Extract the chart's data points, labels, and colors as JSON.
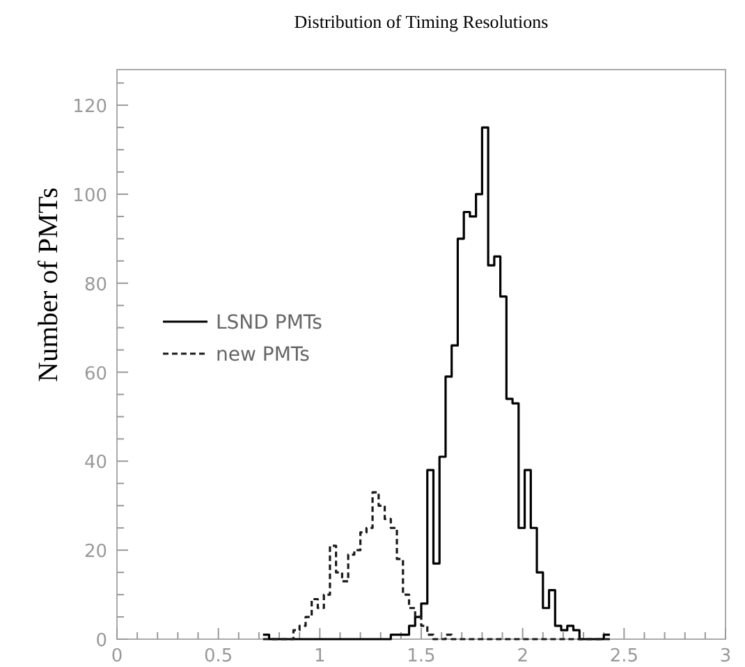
{
  "chart_data": {
    "type": "histogram",
    "title": "Distribution of Timing Resolutions",
    "ylabel": "Number of PMTs",
    "bins": [
      0.72,
      0.75,
      0.78,
      0.81,
      0.84,
      0.87,
      0.9,
      0.93,
      0.96,
      0.99,
      1.02,
      1.05,
      1.08,
      1.11,
      1.14,
      1.17,
      1.2,
      1.23,
      1.26,
      1.29,
      1.32,
      1.35,
      1.38,
      1.41,
      1.44,
      1.47,
      1.5,
      1.53,
      1.56,
      1.59,
      1.62,
      1.65,
      1.68,
      1.71,
      1.74,
      1.77,
      1.8,
      1.83,
      1.86,
      1.89,
      1.92,
      1.95,
      1.98,
      2.01,
      2.04,
      2.07,
      2.1,
      2.13,
      2.16,
      2.19,
      2.22,
      2.25,
      2.28,
      2.31,
      2.34,
      2.37,
      2.4,
      2.43
    ],
    "series": [
      {
        "name": "LSND PMTs",
        "color": "#000000",
        "line_style": "solid",
        "values": [
          1,
          0,
          0,
          0,
          0,
          0,
          0,
          0,
          0,
          0,
          0,
          0,
          0,
          0,
          0,
          0,
          0,
          0,
          0,
          0,
          0,
          1,
          1,
          1,
          3,
          5,
          8,
          38,
          17,
          41,
          59,
          66,
          90,
          96,
          95,
          100,
          115,
          84,
          86,
          77,
          54,
          53,
          25,
          38,
          25,
          15,
          7,
          11,
          3,
          2,
          3,
          2,
          0,
          0,
          0,
          0,
          1
        ]
      },
      {
        "name": "new PMTs",
        "color": "#1a1a1a",
        "line_style": "dashed",
        "values": [
          0,
          0,
          0,
          0,
          0,
          2,
          3,
          5,
          9,
          7,
          10,
          21,
          15,
          13,
          19,
          20,
          24,
          25,
          33,
          30,
          27,
          25,
          18,
          10,
          7,
          5,
          3,
          1,
          0,
          0,
          1,
          0,
          0,
          0,
          0,
          0,
          0,
          0,
          0,
          0,
          0,
          0,
          0,
          0,
          0,
          0,
          0,
          0,
          0,
          0,
          0,
          0,
          0,
          0,
          0,
          0,
          0
        ]
      }
    ],
    "xlim": [
      0,
      3
    ],
    "ylim": [
      0,
      128
    ],
    "xticks": [
      0,
      {
        "value": 0.1,
        "label": null
      },
      {
        "value": 0.2,
        "label": null
      },
      {
        "value": 0.3,
        "label": null
      },
      {
        "value": 0.4,
        "label": null
      },
      0.5,
      {
        "value": 0.6,
        "label": null
      },
      {
        "value": 0.7,
        "label": null
      },
      {
        "value": 0.8,
        "label": null
      },
      {
        "value": 0.9,
        "label": null
      },
      1,
      {
        "value": 1.1,
        "label": null
      },
      {
        "value": 1.2,
        "label": null
      },
      {
        "value": 1.3,
        "label": null
      },
      {
        "value": 1.4,
        "label": null
      },
      1.5,
      {
        "value": 1.6,
        "label": null
      },
      {
        "value": 1.7,
        "label": null
      },
      {
        "value": 1.8,
        "label": null
      },
      {
        "value": 1.9,
        "label": null
      },
      2,
      {
        "value": 2.1,
        "label": null
      },
      {
        "value": 2.2,
        "label": null
      },
      {
        "value": 2.3,
        "label": null
      },
      {
        "value": 2.4,
        "label": null
      },
      2.5,
      {
        "value": 2.6,
        "label": null
      },
      {
        "value": 2.7,
        "label": null
      },
      {
        "value": 2.8,
        "label": null
      },
      {
        "value": 2.9,
        "label": null
      },
      3
    ],
    "yticks": [
      0,
      {
        "value": 5,
        "label": null
      },
      {
        "value": 10,
        "label": null
      },
      {
        "value": 15,
        "label": null
      },
      20,
      {
        "value": 25,
        "label": null
      },
      {
        "value": 30,
        "label": null
      },
      {
        "value": 35,
        "label": null
      },
      40,
      {
        "value": 45,
        "label": null
      },
      {
        "value": 50,
        "label": null
      },
      {
        "value": 55,
        "label": null
      },
      60,
      {
        "value": 65,
        "label": null
      },
      {
        "value": 70,
        "label": null
      },
      {
        "value": 75,
        "label": null
      },
      80,
      {
        "value": 85,
        "label": null
      },
      {
        "value": 90,
        "label": null
      },
      {
        "value": 95,
        "label": null
      },
      100,
      {
        "value": 105,
        "label": null
      },
      {
        "value": 110,
        "label": null
      },
      {
        "value": 115,
        "label": null
      },
      120,
      {
        "value": 125,
        "label": null
      }
    ],
    "legend": "left"
  }
}
